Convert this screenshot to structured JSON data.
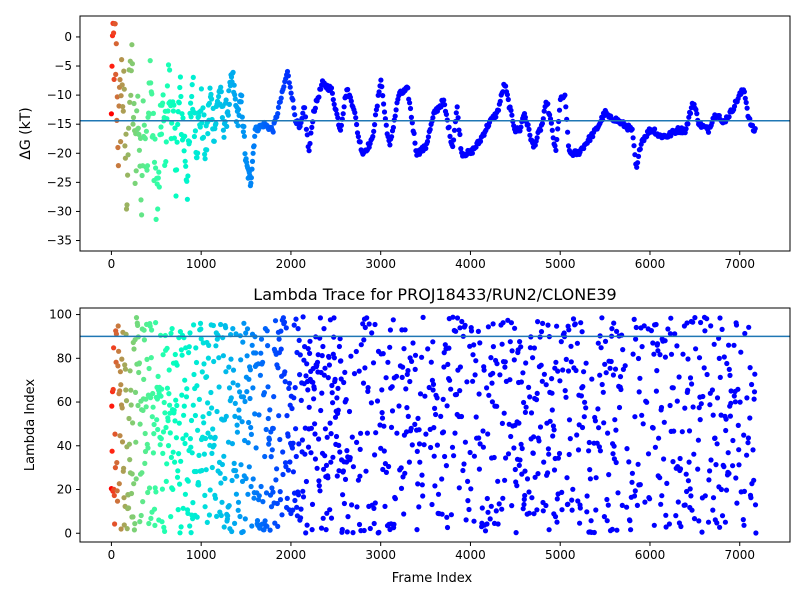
{
  "chart_data": [
    {
      "type": "scatter",
      "title": "",
      "xlabel": "",
      "ylabel": "ΔG (kT)",
      "xlim": [
        -350,
        7560
      ],
      "ylim": [
        -36.8,
        3.6
      ],
      "xticks": [
        0,
        1000,
        2000,
        3000,
        4000,
        5000,
        6000,
        7000
      ],
      "yticks": [
        0,
        -5,
        -10,
        -15,
        -20,
        -25,
        -30,
        -35
      ],
      "hline": -14.4,
      "hline_color": "#1f77b4",
      "colormap": "rainbow, mapped by frame order",
      "trace_y": [
        [
          1,
          -1
        ],
        [
          20,
          -3
        ],
        [
          40,
          0
        ],
        [
          80,
          -18
        ],
        [
          120,
          -6
        ],
        [
          170,
          -25
        ],
        [
          220,
          -4
        ],
        [
          260,
          -20
        ],
        [
          300,
          -12
        ],
        [
          330,
          -27
        ],
        [
          360,
          -10
        ],
        [
          400,
          -24
        ],
        [
          430,
          -4
        ],
        [
          470,
          -20
        ],
        [
          520,
          -29
        ],
        [
          560,
          -12
        ],
        [
          600,
          -18
        ],
        [
          640,
          -8
        ],
        [
          680,
          -14
        ],
        [
          720,
          -22
        ],
        [
          760,
          -10
        ],
        [
          800,
          -16
        ],
        [
          850,
          -25
        ],
        [
          900,
          -8
        ],
        [
          950,
          -18
        ],
        [
          1000,
          -12
        ],
        [
          1050,
          -20
        ],
        [
          1100,
          -10
        ],
        [
          1150,
          -16
        ],
        [
          1200,
          -9
        ],
        [
          1250,
          -15
        ],
        [
          1300,
          -12
        ],
        [
          1350,
          -7
        ],
        [
          1400,
          -14
        ],
        [
          1450,
          -11
        ],
        [
          1500,
          -22
        ],
        [
          1550,
          -25
        ],
        [
          1600,
          -16
        ],
        [
          1700,
          -15
        ],
        [
          1800,
          -16
        ],
        [
          1900,
          -10
        ],
        [
          1960,
          -6
        ],
        [
          2000,
          -9
        ],
        [
          2050,
          -14
        ],
        [
          2100,
          -16
        ],
        [
          2150,
          -12
        ],
        [
          2200,
          -20
        ],
        [
          2250,
          -13
        ],
        [
          2350,
          -8
        ],
        [
          2450,
          -9
        ],
        [
          2550,
          -16
        ],
        [
          2620,
          -9
        ],
        [
          2700,
          -12
        ],
        [
          2750,
          -17
        ],
        [
          2800,
          -20
        ],
        [
          2900,
          -18
        ],
        [
          2960,
          -12
        ],
        [
          3000,
          -7
        ],
        [
          3050,
          -14
        ],
        [
          3100,
          -19
        ],
        [
          3200,
          -10
        ],
        [
          3300,
          -9
        ],
        [
          3400,
          -20
        ],
        [
          3500,
          -19
        ],
        [
          3600,
          -13
        ],
        [
          3700,
          -11
        ],
        [
          3800,
          -19
        ],
        [
          3850,
          -12
        ],
        [
          3900,
          -20
        ],
        [
          4000,
          -20
        ],
        [
          4100,
          -18
        ],
        [
          4200,
          -15
        ],
        [
          4300,
          -13
        ],
        [
          4380,
          -8
        ],
        [
          4450,
          -13
        ],
        [
          4500,
          -16
        ],
        [
          4550,
          -16
        ],
        [
          4600,
          -13
        ],
        [
          4650,
          -16
        ],
        [
          4700,
          -19
        ],
        [
          4800,
          -15
        ],
        [
          4850,
          -11
        ],
        [
          4900,
          -15
        ],
        [
          4950,
          -20
        ],
        [
          5000,
          -11
        ],
        [
          5050,
          -10
        ],
        [
          5100,
          -20
        ],
        [
          5200,
          -20
        ],
        [
          5300,
          -18
        ],
        [
          5400,
          -16
        ],
        [
          5500,
          -13
        ],
        [
          5550,
          -14
        ],
        [
          5600,
          -14
        ],
        [
          5700,
          -15
        ],
        [
          5800,
          -16
        ],
        [
          5850,
          -23
        ],
        [
          5900,
          -18
        ],
        [
          6000,
          -16
        ],
        [
          6050,
          -16
        ],
        [
          6100,
          -17
        ],
        [
          6200,
          -17
        ],
        [
          6300,
          -16
        ],
        [
          6400,
          -16
        ],
        [
          6480,
          -11
        ],
        [
          6550,
          -15
        ],
        [
          6650,
          -16
        ],
        [
          6700,
          -14
        ],
        [
          6760,
          -13
        ],
        [
          6800,
          -15
        ],
        [
          6900,
          -13
        ],
        [
          7000,
          -10
        ],
        [
          7050,
          -9
        ],
        [
          7100,
          -14
        ],
        [
          7150,
          -16
        ],
        [
          7180,
          -16
        ]
      ]
    },
    {
      "type": "scatter",
      "title": "Lambda Trace for PROJ18433/RUN2/CLONE39",
      "xlabel": "Frame Index",
      "ylabel": "Lambda Index",
      "xlim": [
        -350,
        7560
      ],
      "ylim": [
        -4,
        103
      ],
      "xticks": [
        0,
        1000,
        2000,
        3000,
        4000,
        5000,
        6000,
        7000
      ],
      "yticks": [
        0,
        20,
        40,
        60,
        80,
        100
      ],
      "hline": 90,
      "hline_color": "#1f77b4",
      "colormap": "rainbow, mapped by frame order",
      "x_range": [
        0,
        7180
      ],
      "y_range": [
        0,
        99
      ]
    }
  ]
}
